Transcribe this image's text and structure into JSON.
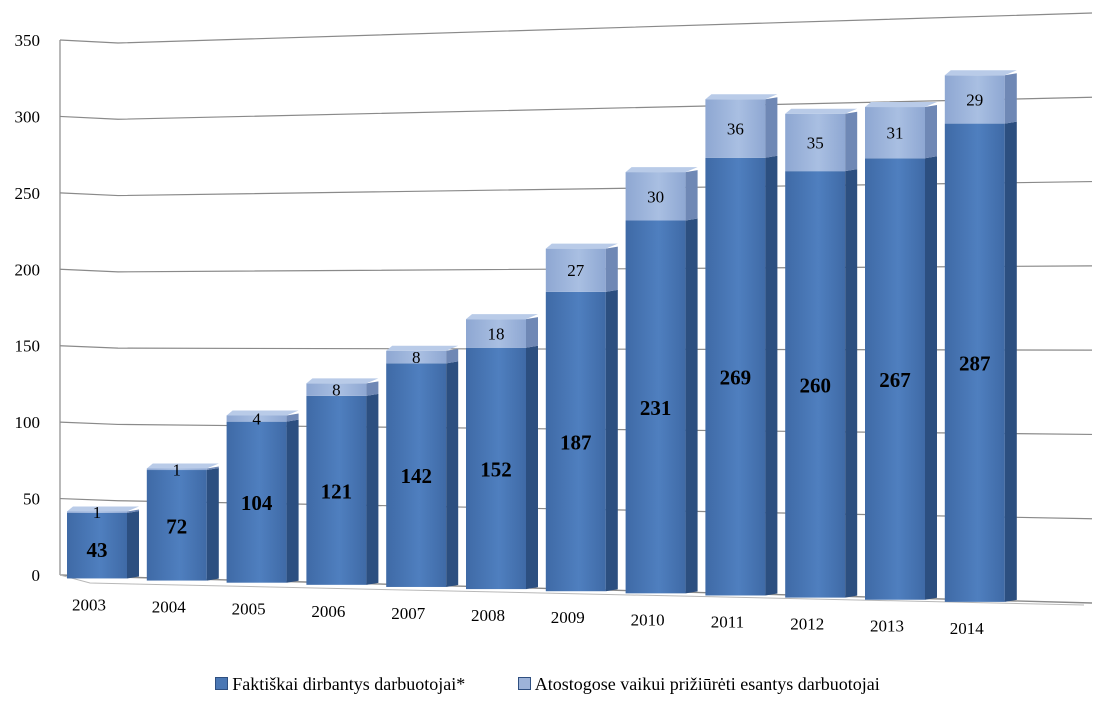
{
  "chart_data": {
    "type": "bar",
    "stacked": true,
    "title": "",
    "xlabel": "",
    "ylabel": "",
    "ylim": [
      0,
      350
    ],
    "yticks": [
      "0",
      "50",
      "100",
      "150",
      "200",
      "250",
      "300",
      "350"
    ],
    "grid": true,
    "legend_position": "bottom",
    "categories": [
      "2003",
      "2004",
      "2005",
      "2006",
      "2007",
      "2008",
      "2009",
      "2010",
      "2011",
      "2012",
      "2013",
      "2014"
    ],
    "series": [
      {
        "name": "Faktiškai dirbantys darbuotojai*",
        "color": "#4a77b4",
        "values": [
          43,
          72,
          104,
          121,
          142,
          152,
          187,
          231,
          269,
          260,
          267,
          287
        ],
        "labels": [
          "43",
          "72",
          "104",
          "121",
          "142",
          "152",
          "187",
          "231",
          "269",
          "260",
          "267",
          "287"
        ]
      },
      {
        "name": "Atostogose vaikui prižiūrėti esantys darbuotojai",
        "color": "#9db3d9",
        "values": [
          1,
          1,
          4,
          8,
          8,
          18,
          27,
          30,
          36,
          35,
          31,
          29
        ],
        "labels": [
          "1",
          "1",
          "4",
          "8",
          "8",
          "18",
          "27",
          "30",
          "36",
          "35",
          "31",
          "29"
        ]
      }
    ]
  }
}
